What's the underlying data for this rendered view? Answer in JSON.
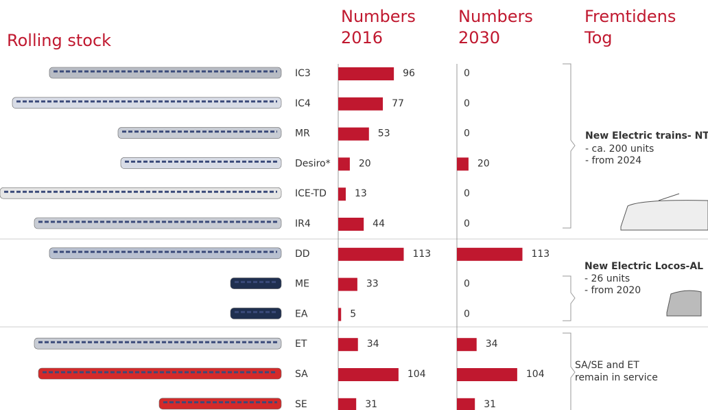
{
  "chart_data": {
    "type": "bar",
    "title": "Rolling stock",
    "categories": [
      "IC3",
      "IC4",
      "MR",
      "Desiro*",
      "ICE-TD",
      "IR4",
      "DD",
      "ME",
      "EA",
      "ET",
      "SA",
      "SE"
    ],
    "series": [
      {
        "name_lines": [
          "Numbers",
          "2016"
        ],
        "color": "#c0182f",
        "values": [
          96,
          77,
          53,
          20,
          13,
          44,
          113,
          33,
          5,
          34,
          104,
          31
        ]
      },
      {
        "name_lines": [
          "Numbers",
          "2030"
        ],
        "color": "#c0182f",
        "values": [
          0,
          0,
          0,
          20,
          0,
          0,
          113,
          0,
          0,
          34,
          104,
          31
        ]
      }
    ],
    "future_heading_lines": [
      "Fremtidens",
      "Tog"
    ],
    "annotations": [
      {
        "lines": [
          "New Electric trains- NT",
          "- ca. 200 units",
          "- from 2024"
        ]
      },
      {
        "lines": [
          "New Electric Locos-AL",
          "- 26 units",
          "- from 2020"
        ]
      },
      {
        "lines": [
          "SA/SE and ET",
          "remain in service"
        ]
      }
    ]
  }
}
